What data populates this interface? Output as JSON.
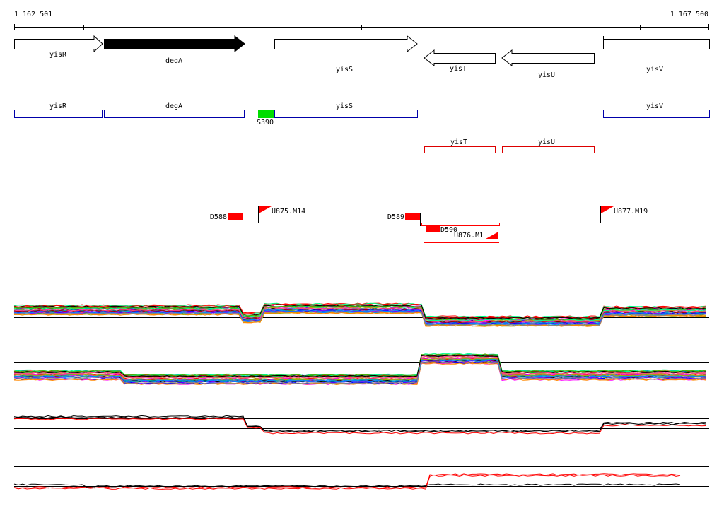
{
  "coords": {
    "start": "1 162 501",
    "end": "1 167 500"
  },
  "genes": [
    {
      "name": "yisR",
      "strand": "+",
      "filled": false
    },
    {
      "name": "degA",
      "strand": "+",
      "filled": true
    },
    {
      "name": "yisS",
      "strand": "+",
      "filled": false
    },
    {
      "name": "yisT",
      "strand": "-",
      "filled": false
    },
    {
      "name": "yisU",
      "strand": "-",
      "filled": false
    },
    {
      "name": "yisV",
      "strand": "+",
      "filled": false
    }
  ],
  "annotations_plus": [
    "yisR",
    "degA",
    "yisS",
    "yisV"
  ],
  "annotations_minus": [
    "yisT",
    "yisU"
  ],
  "site_marker": "S390",
  "downregulated_labels": [
    "D588",
    "D589",
    "D590"
  ],
  "upregulated_labels": [
    "U875.M14",
    "U876.M1",
    "U877.M19"
  ],
  "colors": {
    "gene_outline": "#000000",
    "plus_box": "#0000aa",
    "minus_box": "#dd0000",
    "site_marker": "#00dd00",
    "segment": "#ff0000",
    "axis": "#000000"
  },
  "profile_palette": [
    "#ff0000",
    "#0000ff",
    "#00aa00",
    "#ff00ff",
    "#00aaaa",
    "#aaaa00",
    "#ff8800",
    "#8800ff",
    "#00ff88",
    "#aa0000",
    "#0088ff",
    "#888888",
    "#55aa00",
    "#ff4488",
    "#000000"
  ]
}
